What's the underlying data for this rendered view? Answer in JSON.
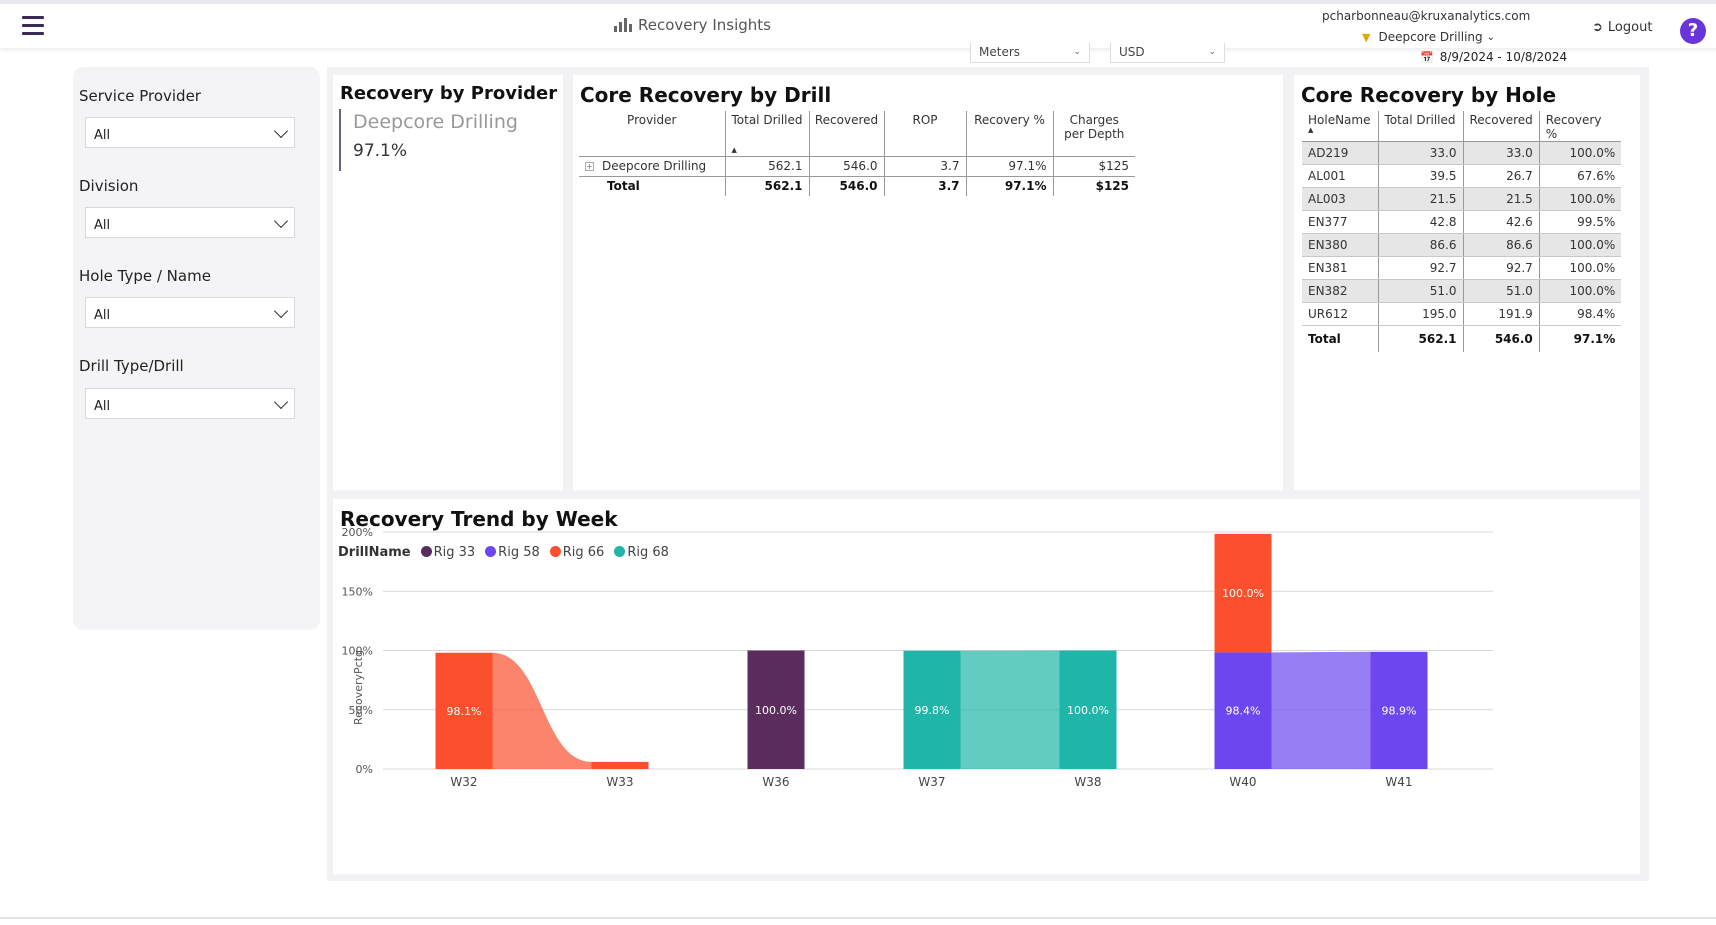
{
  "header": {
    "app_title": "Recovery Insights",
    "user_email": "pcharbonneau@kruxanalytics.com",
    "organization": "Deepcore Drilling",
    "logout_label": "Logout",
    "help_label": "?"
  },
  "controls": {
    "unit": "Meters",
    "currency": "USD",
    "date_range": "8/9/2024 - 10/8/2024"
  },
  "filters": [
    {
      "label": "Service Provider",
      "value": "All"
    },
    {
      "label": "Division",
      "value": "All"
    },
    {
      "label": "Hole Type / Name",
      "value": "All"
    },
    {
      "label": "Drill Type/Drill",
      "value": "All"
    }
  ],
  "provider_card": {
    "title": "Recovery by Provider",
    "provider": "Deepcore Drilling",
    "value": "97.1%"
  },
  "drill_card": {
    "title": "Core Recovery by Drill",
    "columns": [
      "Provider",
      "Total Drilled",
      "Recovered",
      "ROP",
      "Recovery %",
      "Charges per Depth"
    ],
    "rows": [
      [
        "Deepcore Drilling",
        "562.1",
        "546.0",
        "3.7",
        "97.1%",
        "$125"
      ]
    ],
    "total": [
      "Total",
      "562.1",
      "546.0",
      "3.7",
      "97.1%",
      "$125"
    ]
  },
  "hole_card": {
    "title": "Core Recovery by Hole",
    "columns": [
      "HoleName",
      "Total Drilled",
      "Recovered",
      "Recovery %"
    ],
    "rows": [
      [
        "AD219",
        "33.0",
        "33.0",
        "100.0%"
      ],
      [
        "AL001",
        "39.5",
        "26.7",
        "67.6%"
      ],
      [
        "AL003",
        "21.5",
        "21.5",
        "100.0%"
      ],
      [
        "EN377",
        "42.8",
        "42.6",
        "99.5%"
      ],
      [
        "EN380",
        "86.6",
        "86.6",
        "100.0%"
      ],
      [
        "EN381",
        "92.7",
        "92.7",
        "100.0%"
      ],
      [
        "EN382",
        "51.0",
        "51.0",
        "100.0%"
      ],
      [
        "UR612",
        "195.0",
        "191.9",
        "98.4%"
      ]
    ],
    "total": [
      "Total",
      "562.1",
      "546.0",
      "97.1%"
    ]
  },
  "trend_card": {
    "title": "Recovery Trend by Week",
    "legend_title": "DrillName",
    "ylabel": "RecoveryPctg"
  },
  "chart_data": {
    "type": "bar",
    "stacked": true,
    "categories": [
      "W32",
      "W33",
      "W36",
      "W37",
      "W38",
      "W40",
      "W41"
    ],
    "yticks": [
      "0%",
      "50%",
      "100%",
      "150%",
      "200%"
    ],
    "ylim": [
      0,
      200
    ],
    "ylabel": "RecoveryPctg",
    "legend_title": "DrillName",
    "series": [
      {
        "name": "Rig 33",
        "color": "#5b2d5e",
        "values": [
          null,
          null,
          100.0,
          null,
          null,
          null,
          null
        ]
      },
      {
        "name": "Rig 58",
        "color": "#6c47f0",
        "values": [
          null,
          null,
          null,
          null,
          null,
          98.4,
          98.9
        ]
      },
      {
        "name": "Rig 66",
        "color": "#fb4f2d",
        "values": [
          98.1,
          6,
          null,
          null,
          null,
          100.0,
          null
        ]
      },
      {
        "name": "Rig 68",
        "color": "#1fb5a8",
        "values": [
          null,
          null,
          null,
          99.8,
          100.0,
          null,
          null
        ]
      }
    ],
    "data_labels": [
      {
        "category": "W32",
        "series": "Rig 66",
        "text": "98.1%"
      },
      {
        "category": "W36",
        "series": "Rig 33",
        "text": "100.0%"
      },
      {
        "category": "W37",
        "series": "Rig 68",
        "text": "99.8%"
      },
      {
        "category": "W38",
        "series": "Rig 68",
        "text": "100.0%"
      },
      {
        "category": "W40",
        "series": "Rig 58",
        "text": "98.4%"
      },
      {
        "category": "W40",
        "series": "Rig 66",
        "text": "100.0%"
      },
      {
        "category": "W41",
        "series": "Rig 58",
        "text": "98.9%"
      }
    ]
  }
}
